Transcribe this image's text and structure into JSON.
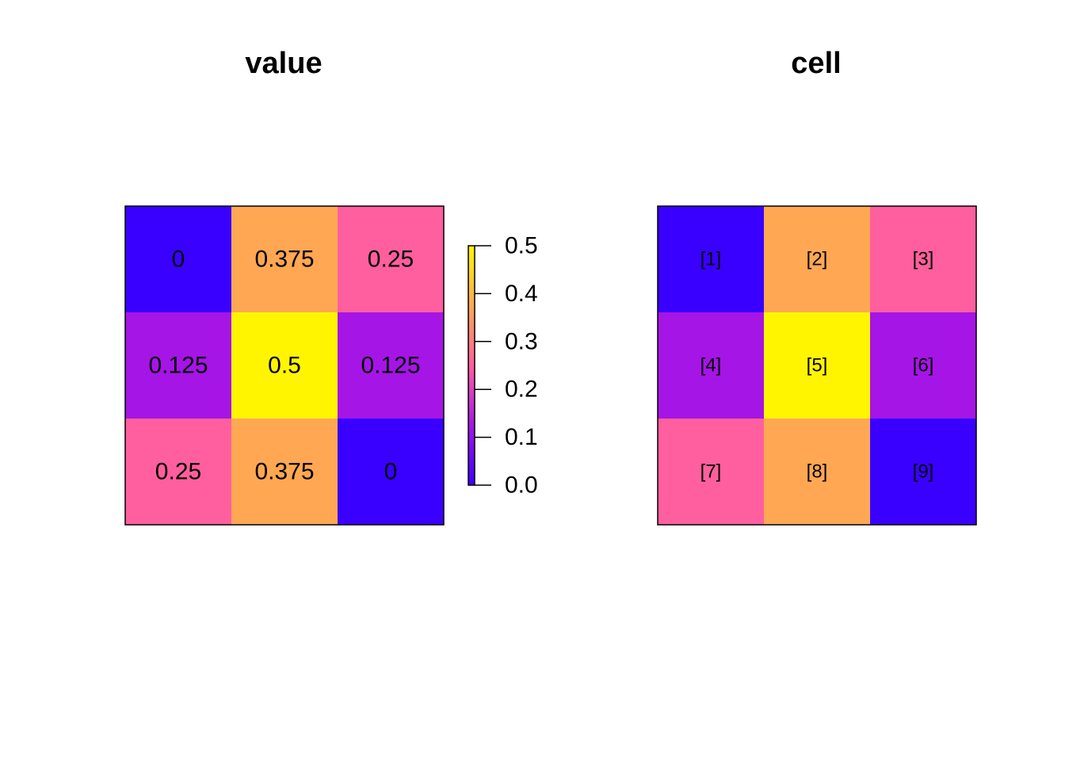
{
  "chart_data": [
    {
      "type": "heatmap",
      "title": "value",
      "rows": 3,
      "cols": 3,
      "values": [
        0,
        0.375,
        0.25,
        0.125,
        0.5,
        0.125,
        0.25,
        0.375,
        0
      ],
      "labels": [
        "0",
        "0.375",
        "0.25",
        "0.125",
        "0.5",
        "0.125",
        "0.25",
        "0.375",
        "0"
      ],
      "legend": {
        "type": "colorbar",
        "placement": "right",
        "range": [
          0,
          0.5
        ],
        "ticks": [
          0.0,
          0.1,
          0.2,
          0.3,
          0.4,
          0.5
        ],
        "tick_labels": [
          "0.0",
          "0.1",
          "0.2",
          "0.3",
          "0.4",
          "0.5"
        ]
      }
    },
    {
      "type": "heatmap",
      "title": "cell",
      "rows": 3,
      "cols": 3,
      "values": [
        0,
        0.375,
        0.25,
        0.125,
        0.5,
        0.125,
        0.25,
        0.375,
        0
      ],
      "labels": [
        "[1]",
        "[2]",
        "[3]",
        "[4]",
        "[5]",
        "[6]",
        "[7]",
        "[8]",
        "[9]"
      ]
    }
  ],
  "colors": {
    "palette": [
      "#3a00ff",
      "#a515e6",
      "#ff5f9e",
      "#ffa753",
      "#fff500"
    ],
    "frame": "#000000"
  }
}
